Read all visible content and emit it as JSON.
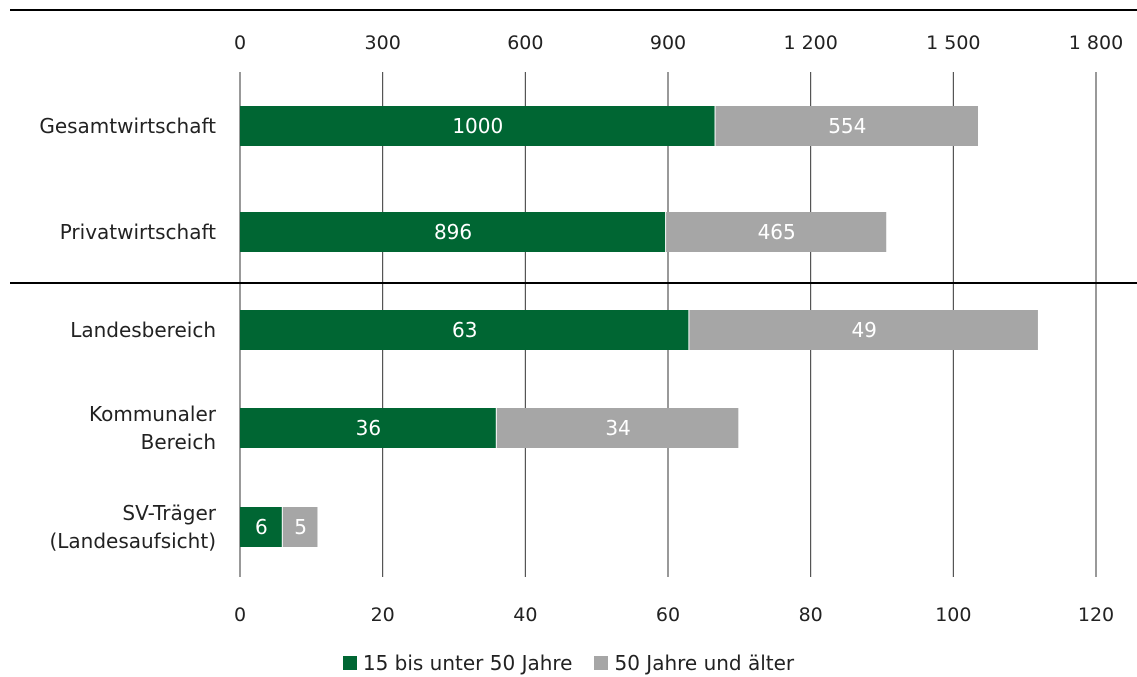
{
  "chart_data": {
    "type": "bar",
    "orientation": "horizontal",
    "stacked": true,
    "colors": {
      "young": "#006633",
      "old": "#a6a6a6"
    },
    "legend_position": "bottom",
    "grid": true,
    "series": [
      {
        "name": "15 bis unter 50 Jahre",
        "key": "young"
      },
      {
        "name": "50 Jahre und älter",
        "key": "old"
      }
    ],
    "top_axis": {
      "range": [
        0,
        1800
      ],
      "ticks": [
        0,
        300,
        600,
        900,
        1200,
        1500,
        1800
      ],
      "tick_labels": [
        "0",
        "300",
        "600",
        "900",
        "1 200",
        "1 500",
        "1 800"
      ]
    },
    "bottom_axis": {
      "range": [
        0,
        120
      ],
      "ticks": [
        0,
        20,
        40,
        60,
        80,
        100,
        120
      ],
      "tick_labels": [
        "0",
        "20",
        "40",
        "60",
        "80",
        "100",
        "120"
      ]
    },
    "groups": [
      {
        "axis": "top",
        "categories": [
          {
            "label_lines": [
              "Gesamtwirtschaft"
            ],
            "values": [
              1000,
              554
            ]
          },
          {
            "label_lines": [
              "Privatwirtschaft"
            ],
            "values": [
              896,
              465
            ]
          }
        ]
      },
      {
        "axis": "bottom",
        "categories": [
          {
            "label_lines": [
              "Landesbereich"
            ],
            "values": [
              63,
              49
            ]
          },
          {
            "label_lines": [
              "Kommunaler",
              "Bereich"
            ],
            "values": [
              36,
              34
            ]
          },
          {
            "label_lines": [
              "SV-Träger",
              "(Landesaufsicht)"
            ],
            "values": [
              6,
              5
            ]
          }
        ]
      }
    ]
  }
}
